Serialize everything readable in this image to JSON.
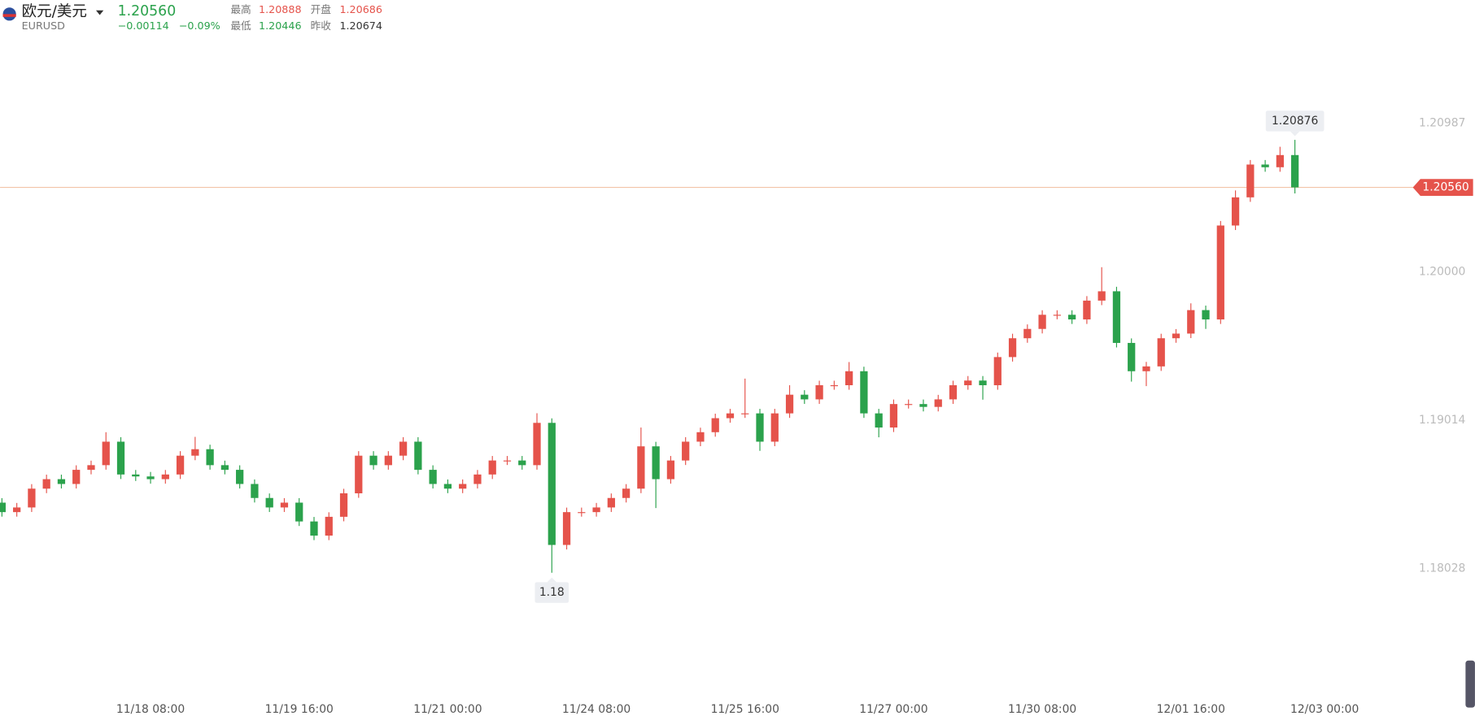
{
  "header": {
    "symbol": "欧元/美元",
    "code": "EURUSD",
    "price": "1.20560",
    "change": "−0.00114",
    "change_pct": "−0.09%",
    "stats": [
      {
        "label": "最高",
        "value": "1.20888"
      },
      {
        "label": "开盘",
        "value": "1.20686"
      },
      {
        "label": "最低",
        "value": "1.20446"
      },
      {
        "label": "昨收",
        "value": "1.20674"
      }
    ]
  },
  "chart_data": {
    "type": "candlestick",
    "up_color": "#e5534b",
    "down_color": "#2ba24c",
    "categories": [
      null,
      null,
      null,
      null,
      null,
      null,
      null,
      null,
      null,
      null,
      "11/18 08:00",
      null,
      null,
      null,
      null,
      null,
      null,
      null,
      null,
      null,
      "11/19 16:00",
      null,
      null,
      null,
      null,
      null,
      null,
      null,
      null,
      null,
      "11/21 00:00",
      null,
      null,
      null,
      null,
      null,
      null,
      null,
      null,
      null,
      "11/24 08:00",
      null,
      null,
      null,
      null,
      null,
      null,
      null,
      null,
      null,
      "11/25 16:00",
      null,
      null,
      null,
      null,
      null,
      null,
      null,
      null,
      null,
      "11/27 00:00",
      null,
      null,
      null,
      null,
      null,
      null,
      null,
      null,
      null,
      "11/30 08:00",
      null,
      null,
      null,
      null,
      null,
      null,
      null,
      null,
      null,
      "12/01 16:00",
      null,
      null,
      null,
      null,
      null,
      null,
      null,
      null,
      "12/03 00:00"
    ],
    "open": [
      1.18466,
      1.18403,
      1.18434,
      1.18559,
      1.18622,
      1.1859,
      1.18684,
      1.18715,
      1.18871,
      1.18653,
      1.1864,
      1.18622,
      1.18653,
      1.18778,
      1.18821,
      1.18715,
      1.18684,
      1.1859,
      1.18497,
      1.18434,
      1.18466,
      1.18341,
      1.18247,
      1.18372,
      1.18528,
      1.18778,
      1.18715,
      1.18778,
      1.18871,
      1.18684,
      1.1859,
      1.18559,
      1.1859,
      1.18653,
      1.18746,
      1.18746,
      1.18715,
      1.18996,
      1.18185,
      1.18403,
      1.18403,
      1.18434,
      1.18497,
      1.18559,
      1.1884,
      1.18622,
      1.18746,
      1.18871,
      1.18934,
      1.19027,
      1.19059,
      1.19059,
      1.18871,
      1.19059,
      1.19183,
      1.19152,
      1.19246,
      1.19246,
      1.19339,
      1.19059,
      1.18965,
      1.19121,
      1.19121,
      1.19102,
      1.19152,
      1.19246,
      1.19277,
      1.19246,
      1.19433,
      1.19558,
      1.1962,
      1.19714,
      1.19714,
      1.19683,
      1.19808,
      1.1987,
      1.19527,
      1.19339,
      1.19371,
      1.19558,
      1.19589,
      1.19745,
      1.19683,
      1.20307,
      1.20494,
      1.20712,
      1.20694,
      1.20775,
      null,
      null
    ],
    "high": [
      1.18496,
      1.18464,
      1.18589,
      1.18652,
      1.18652,
      1.18714,
      1.18745,
      1.18934,
      1.18901,
      1.18683,
      1.1867,
      1.18683,
      1.18808,
      1.18903,
      1.18851,
      1.18745,
      1.18714,
      1.1862,
      1.18527,
      1.18496,
      1.18496,
      1.18371,
      1.18402,
      1.18558,
      1.18808,
      1.18808,
      1.18808,
      1.18901,
      1.18901,
      1.18714,
      1.1862,
      1.1862,
      1.18683,
      1.18776,
      1.18776,
      1.18776,
      1.1906,
      1.19026,
      1.18433,
      1.18433,
      1.18464,
      1.18527,
      1.18589,
      1.18965,
      1.1887,
      1.18776,
      1.18901,
      1.18964,
      1.19057,
      1.19089,
      1.1929,
      1.19089,
      1.19089,
      1.19246,
      1.19213,
      1.19276,
      1.19276,
      1.194,
      1.19369,
      1.19089,
      1.19151,
      1.19151,
      1.19151,
      1.19182,
      1.19276,
      1.19307,
      1.19307,
      1.19463,
      1.19588,
      1.1965,
      1.19744,
      1.19744,
      1.19744,
      1.19838,
      1.2003,
      1.199,
      1.19557,
      1.19401,
      1.19588,
      1.19619,
      1.1979,
      1.19775,
      1.20337,
      1.2054,
      1.20742,
      1.20742,
      1.2083,
      1.20876,
      null,
      null
    ],
    "low": [
      1.18373,
      1.18373,
      1.18404,
      1.18529,
      1.1856,
      1.1856,
      1.18654,
      1.18685,
      1.18623,
      1.1861,
      1.18592,
      1.18592,
      1.18623,
      1.18748,
      1.18685,
      1.18654,
      1.1856,
      1.18467,
      1.18404,
      1.18404,
      1.18311,
      1.18217,
      1.18217,
      1.18342,
      1.18498,
      1.18685,
      1.18685,
      1.18748,
      1.18654,
      1.1856,
      1.18529,
      1.18529,
      1.1856,
      1.18623,
      1.18716,
      1.18685,
      1.18685,
      1.18,
      1.18155,
      1.18373,
      1.18373,
      1.18404,
      1.18467,
      1.18529,
      1.1843,
      1.18592,
      1.18716,
      1.18841,
      1.18904,
      1.18997,
      1.19029,
      1.1881,
      1.18841,
      1.19029,
      1.19122,
      1.19122,
      1.19216,
      1.19216,
      1.19029,
      1.189,
      1.18935,
      1.19091,
      1.19072,
      1.19072,
      1.19122,
      1.19216,
      1.1915,
      1.19216,
      1.19403,
      1.19528,
      1.1959,
      1.19684,
      1.19653,
      1.19653,
      1.19778,
      1.19497,
      1.1927,
      1.1924,
      1.19341,
      1.19528,
      1.19559,
      1.1962,
      1.19653,
      1.20277,
      1.20464,
      1.20664,
      1.20664,
      1.2052,
      null,
      null
    ],
    "close": [
      1.18403,
      1.18434,
      1.18559,
      1.18622,
      1.1859,
      1.18684,
      1.18715,
      1.18871,
      1.18653,
      1.1864,
      1.18622,
      1.18653,
      1.18778,
      1.18821,
      1.18715,
      1.18684,
      1.1859,
      1.18497,
      1.18434,
      1.18466,
      1.18341,
      1.18247,
      1.18372,
      1.18528,
      1.18778,
      1.18715,
      1.18778,
      1.18871,
      1.18684,
      1.1859,
      1.18559,
      1.1859,
      1.18653,
      1.18746,
      1.18746,
      1.18715,
      1.18996,
      1.18185,
      1.18403,
      1.18403,
      1.18434,
      1.18497,
      1.18559,
      1.1884,
      1.18622,
      1.18746,
      1.18871,
      1.18934,
      1.19027,
      1.19059,
      1.19059,
      1.18871,
      1.19059,
      1.19183,
      1.19152,
      1.19246,
      1.19246,
      1.19339,
      1.19059,
      1.18965,
      1.19121,
      1.19121,
      1.19102,
      1.19152,
      1.19246,
      1.19277,
      1.19246,
      1.19433,
      1.19558,
      1.1962,
      1.19714,
      1.19714,
      1.19683,
      1.19808,
      1.1987,
      1.19527,
      1.19339,
      1.19371,
      1.19558,
      1.19589,
      1.19745,
      1.19683,
      1.20307,
      1.20494,
      1.20712,
      1.20694,
      1.20775,
      1.2056,
      null,
      null
    ],
    "ylim": [
      1.17186,
      1.21805
    ],
    "yticks": [
      1.20987,
      {
        "value": 1.2,
        "label": "1.20000"
      },
      1.19014,
      1.18028
    ],
    "last_price": {
      "value": 1.2056,
      "label": "1.20560"
    }
  }
}
